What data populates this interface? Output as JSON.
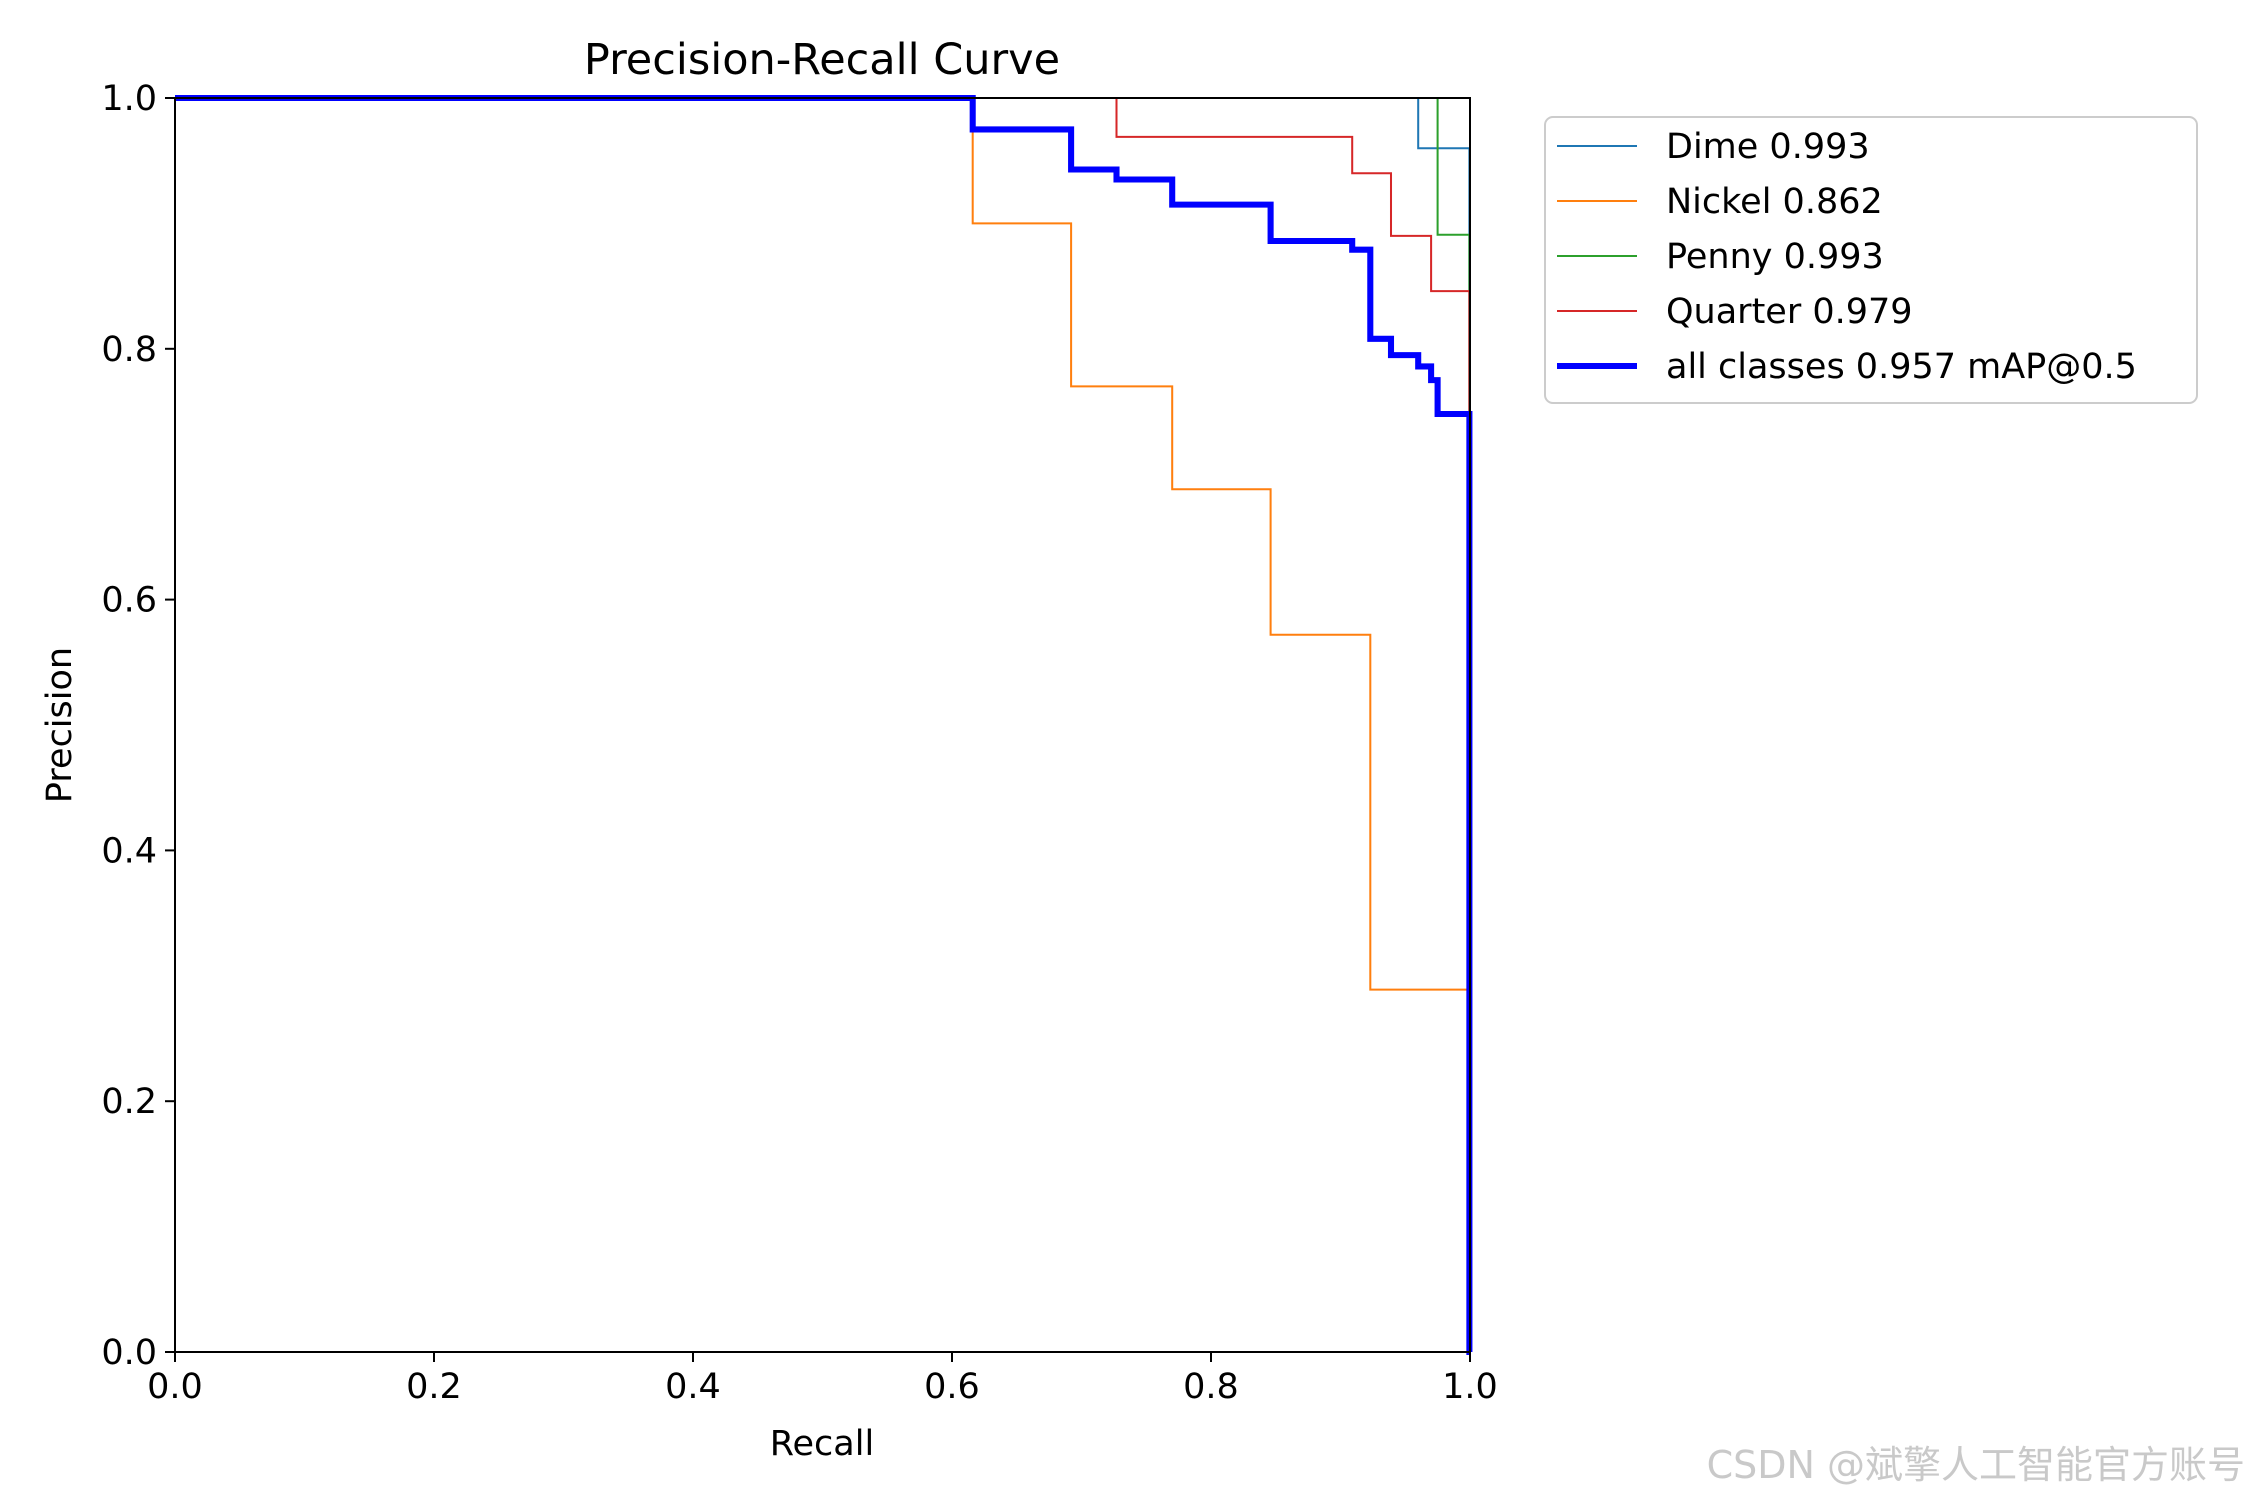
{
  "chart_data": {
    "type": "line",
    "title": "Precision-Recall Curve",
    "xlabel": "Recall",
    "ylabel": "Precision",
    "xlim": [
      0.0,
      1.0
    ],
    "ylim": [
      0.0,
      1.0
    ],
    "xticks": [
      0.0,
      0.2,
      0.4,
      0.6,
      0.8,
      1.0
    ],
    "yticks": [
      0.0,
      0.2,
      0.4,
      0.6,
      0.8,
      1.0
    ],
    "tick_labels": {
      "x": [
        "0.0",
        "0.2",
        "0.4",
        "0.6",
        "0.8",
        "1.0"
      ],
      "y": [
        "0.0",
        "0.2",
        "0.4",
        "0.6",
        "0.8",
        "1.0"
      ]
    },
    "grid": false,
    "legend_position": "outside-top-right",
    "series": [
      {
        "name": "Dime",
        "legend_label": "Dime 0.993",
        "color": "#1f77b4",
        "line_width": 1.5,
        "x": [
          0.0,
          0.96,
          0.96,
          0.9995,
          0.9995,
          1.0
        ],
        "y": [
          1.0,
          1.0,
          0.96,
          0.96,
          0.75,
          0.0
        ]
      },
      {
        "name": "Nickel",
        "legend_label": "Nickel 0.862",
        "color": "#ff7f0e",
        "line_width": 1.5,
        "x": [
          0.0,
          0.616,
          0.616,
          0.692,
          0.692,
          0.77,
          0.77,
          0.846,
          0.846,
          0.923,
          0.923,
          0.9995,
          0.9995,
          1.0
        ],
        "y": [
          1.0,
          1.0,
          0.9,
          0.9,
          0.77,
          0.77,
          0.688,
          0.688,
          0.572,
          0.572,
          0.289,
          0.289,
          0.25,
          0.0
        ]
      },
      {
        "name": "Penny",
        "legend_label": "Penny 0.993",
        "color": "#2ca02c",
        "line_width": 1.5,
        "x": [
          0.0,
          0.975,
          0.975,
          0.9995,
          0.9995,
          1.0
        ],
        "y": [
          1.0,
          1.0,
          0.891,
          0.891,
          0.8,
          0.0
        ]
      },
      {
        "name": "Quarter",
        "legend_label": "Quarter 0.979",
        "color": "#d62728",
        "line_width": 1.5,
        "x": [
          0.0,
          0.727,
          0.727,
          0.909,
          0.909,
          0.939,
          0.939,
          0.97,
          0.97,
          0.9995,
          0.9995,
          1.0
        ],
        "y": [
          1.0,
          1.0,
          0.969,
          0.969,
          0.94,
          0.94,
          0.89,
          0.89,
          0.846,
          0.846,
          0.75,
          0.0
        ]
      },
      {
        "name": "all classes",
        "legend_label": "all classes 0.957 mAP@0.5",
        "color": "#0000ff",
        "line_width": 4.5,
        "x": [
          0.0,
          0.616,
          0.616,
          0.692,
          0.692,
          0.727,
          0.727,
          0.77,
          0.77,
          0.846,
          0.846,
          0.909,
          0.909,
          0.923,
          0.923,
          0.939,
          0.939,
          0.96,
          0.96,
          0.97,
          0.97,
          0.975,
          0.975,
          0.9995,
          0.9995,
          1.0
        ],
        "y": [
          1.0,
          1.0,
          0.975,
          0.975,
          0.943,
          0.943,
          0.935,
          0.935,
          0.915,
          0.915,
          0.886,
          0.886,
          0.879,
          0.879,
          0.808,
          0.808,
          0.795,
          0.795,
          0.786,
          0.786,
          0.775,
          0.775,
          0.748,
          0.748,
          0.0,
          0.0
        ]
      }
    ]
  },
  "watermark": {
    "text": "CSDN @斌擎人工智能官方账号"
  }
}
